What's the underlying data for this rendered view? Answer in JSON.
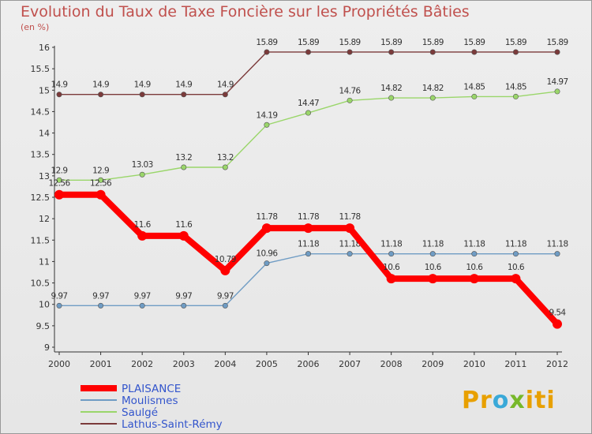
{
  "chart_data": {
    "type": "line",
    "title": "Evolution du Taux de Taxe Foncière sur les Propriétés Bâties",
    "ylabel": "(en %)",
    "ylim": [
      9,
      16
    ],
    "yticks": [
      "9",
      "9.5",
      "10",
      "10.5",
      "11",
      "11.5",
      "12",
      "12.5",
      "13",
      "13.5",
      "14",
      "14.5",
      "15",
      "15.5",
      "16"
    ],
    "categories": [
      "2000",
      "2001",
      "2002",
      "2003",
      "2004",
      "2005",
      "2006",
      "2007",
      "2008",
      "2009",
      "2010",
      "2011",
      "2012"
    ],
    "series": [
      {
        "name": "Lathus-Saint-Rémy",
        "color": "#7b3a3a",
        "values": [
          14.9,
          14.9,
          14.9,
          14.9,
          14.9,
          15.89,
          15.89,
          15.89,
          15.89,
          15.89,
          15.89,
          15.89,
          15.89
        ],
        "labels": [
          "14.9",
          "14.9",
          "14.9",
          "14.9",
          "14.9",
          "15.89",
          "15.89",
          "15.89",
          "15.89",
          "15.89",
          "15.89",
          "15.89",
          "15.89"
        ]
      },
      {
        "name": "Saulgé",
        "color": "#9ad66a",
        "values": [
          12.9,
          12.9,
          13.03,
          13.2,
          13.2,
          14.19,
          14.47,
          14.76,
          14.82,
          14.82,
          14.85,
          14.85,
          14.97
        ],
        "labels": [
          "12.9",
          "12.9",
          "13.03",
          "13.2",
          "13.2",
          "14.19",
          "14.47",
          "14.76",
          "14.82",
          "14.82",
          "14.85",
          "14.85",
          "14.97"
        ]
      },
      {
        "name": "Moulismes",
        "color": "#6f9cc4",
        "values": [
          9.97,
          9.97,
          9.97,
          9.97,
          9.97,
          10.96,
          11.18,
          11.18,
          11.18,
          11.18,
          11.18,
          11.18,
          11.18
        ],
        "labels": [
          "9.97",
          "9.97",
          "9.97",
          "9.97",
          "9.97",
          "10.96",
          "11.18",
          "11.18",
          "11.18",
          "11.18",
          "11.18",
          "11.18",
          "11.18"
        ]
      },
      {
        "name": "PLAISANCE",
        "color": "#ff0000",
        "values": [
          12.56,
          12.56,
          11.6,
          11.6,
          10.79,
          11.78,
          11.78,
          11.78,
          10.6,
          10.6,
          10.6,
          10.6,
          9.54
        ],
        "labels": [
          "12.56",
          "12.56",
          "11.6",
          "11.6",
          "10.79",
          "11.78",
          "11.78",
          "11.78",
          "10.6",
          "10.6",
          "10.6",
          "10.6",
          "9.54"
        ]
      }
    ],
    "legend": [
      "PLAISANCE",
      "Moulismes",
      "Saulgé",
      "Lathus-Saint-Rémy"
    ],
    "legend_position": "bottom-left",
    "grid": false
  },
  "logo": {
    "p1": "Pr",
    "p2": "o",
    "p3": "x",
    "p4": "iti"
  }
}
